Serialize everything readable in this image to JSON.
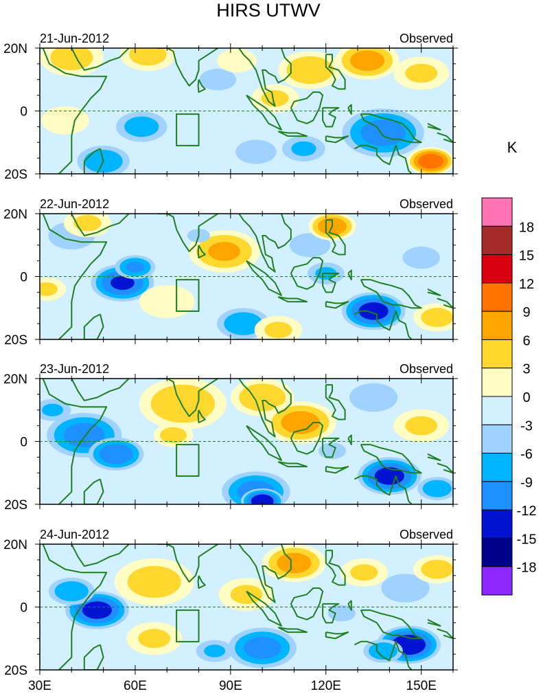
{
  "chart_data": {
    "type": "heatmap",
    "title": "HIRS UTWV",
    "units": "K",
    "run_label": "Observed",
    "x_ticks": [
      "30E",
      "60E",
      "90E",
      "120E",
      "150E"
    ],
    "x_tick_values": [
      30,
      60,
      90,
      120,
      150
    ],
    "y_ticks": [
      "20N",
      "0",
      "20S"
    ],
    "y_tick_values": [
      20,
      0,
      -20
    ],
    "xlim": [
      30,
      160
    ],
    "ylim": [
      -20,
      20
    ],
    "box_region": {
      "lon": [
        73,
        80
      ],
      "lat": [
        -11,
        -1
      ]
    },
    "colorbar": {
      "tick_labels": [
        "18",
        "15",
        "12",
        "9",
        "6",
        "3",
        "0",
        "-3",
        "-6",
        "-9",
        "-12",
        "-15",
        "-18"
      ],
      "colors": [
        "#ff73b4",
        "#a52a2a",
        "#d7000f",
        "#ff7300",
        "#ffa500",
        "#ffd82f",
        "#fffcc4",
        "#d2f0ff",
        "#a0d2ff",
        "#00b4ff",
        "#1e90ff",
        "#0014d2",
        "#00008b",
        "#8c28ff"
      ]
    },
    "panels": [
      {
        "date": "21-Jun-2012",
        "blobs": [
          {
            "lon": 40,
            "lat": 17,
            "r": 8,
            "v": 4
          },
          {
            "lon": 64,
            "lat": 18,
            "r": 7,
            "v": 4
          },
          {
            "lon": 38,
            "lat": -3,
            "r": 6,
            "v": 2
          },
          {
            "lon": 62,
            "lat": -5,
            "r": 8,
            "v": -7
          },
          {
            "lon": 50,
            "lat": -16,
            "r": 8,
            "v": -8
          },
          {
            "lon": 86,
            "lat": 10,
            "r": 8,
            "v": -3
          },
          {
            "lon": 92,
            "lat": 16,
            "r": 5,
            "v": 2
          },
          {
            "lon": 98,
            "lat": -13,
            "r": 7,
            "v": -5
          },
          {
            "lon": 115,
            "lat": 13,
            "r": 8,
            "v": 5
          },
          {
            "lon": 138,
            "lat": -7,
            "r": 12,
            "v": -10
          },
          {
            "lon": 133,
            "lat": 16,
            "r": 8,
            "v": 7
          },
          {
            "lon": 150,
            "lat": 12,
            "r": 7,
            "v": 3
          },
          {
            "lon": 153,
            "lat": -16,
            "r": 6,
            "v": 11
          },
          {
            "lon": 113,
            "lat": -12,
            "r": 7,
            "v": -6
          },
          {
            "lon": 104,
            "lat": 4,
            "r": 6,
            "v": 3
          }
        ]
      },
      {
        "date": "22-Jun-2012",
        "blobs": [
          {
            "lon": 40,
            "lat": 13,
            "r": 8,
            "v": -5
          },
          {
            "lon": 56,
            "lat": -2,
            "r": 9,
            "v": -12
          },
          {
            "lon": 60,
            "lat": 3,
            "r": 6,
            "v": -9
          },
          {
            "lon": 45,
            "lat": 17,
            "r": 6,
            "v": 3
          },
          {
            "lon": 88,
            "lat": 8,
            "r": 9,
            "v": 6
          },
          {
            "lon": 70,
            "lat": -8,
            "r": 7,
            "v": 2
          },
          {
            "lon": 80,
            "lat": 13,
            "r": 5,
            "v": -3
          },
          {
            "lon": 94,
            "lat": -15,
            "r": 8,
            "v": -8
          },
          {
            "lon": 115,
            "lat": 10,
            "r": 7,
            "v": -5
          },
          {
            "lon": 120,
            "lat": 1,
            "r": 6,
            "v": -6
          },
          {
            "lon": 122,
            "lat": 16,
            "r": 6,
            "v": 8
          },
          {
            "lon": 135,
            "lat": -11,
            "r": 9,
            "v": -13
          },
          {
            "lon": 150,
            "lat": 6,
            "r": 7,
            "v": -4
          },
          {
            "lon": 155,
            "lat": -13,
            "r": 6,
            "v": 4
          },
          {
            "lon": 105,
            "lat": -17,
            "r": 6,
            "v": 3
          },
          {
            "lon": 32,
            "lat": -4,
            "r": 5,
            "v": 3
          }
        ]
      },
      {
        "date": "23-Jun-2012",
        "blobs": [
          {
            "lon": 44,
            "lat": 2,
            "r": 11,
            "v": -10
          },
          {
            "lon": 54,
            "lat": -4,
            "r": 8,
            "v": -11
          },
          {
            "lon": 34,
            "lat": 10,
            "r": 6,
            "v": -6
          },
          {
            "lon": 75,
            "lat": 12,
            "r": 11,
            "v": 5
          },
          {
            "lon": 72,
            "lat": 2,
            "r": 5,
            "v": 4
          },
          {
            "lon": 100,
            "lat": 14,
            "r": 8,
            "v": 5
          },
          {
            "lon": 112,
            "lat": 6,
            "r": 9,
            "v": 7
          },
          {
            "lon": 98,
            "lat": -16,
            "r": 10,
            "v": -10
          },
          {
            "lon": 100,
            "lat": -19,
            "r": 6,
            "v": -14
          },
          {
            "lon": 140,
            "lat": -11,
            "r": 9,
            "v": -13
          },
          {
            "lon": 135,
            "lat": 14,
            "r": 9,
            "v": -4
          },
          {
            "lon": 150,
            "lat": 5,
            "r": 7,
            "v": 3
          },
          {
            "lon": 122,
            "lat": -3,
            "r": 6,
            "v": -3
          },
          {
            "lon": 155,
            "lat": -15,
            "r": 6,
            "v": -8
          }
        ]
      },
      {
        "date": "24-Jun-2012",
        "blobs": [
          {
            "lon": 48,
            "lat": -1,
            "r": 9,
            "v": -13
          },
          {
            "lon": 40,
            "lat": 5,
            "r": 7,
            "v": -8
          },
          {
            "lon": 66,
            "lat": 8,
            "r": 10,
            "v": 4
          },
          {
            "lon": 66,
            "lat": -10,
            "r": 7,
            "v": 3
          },
          {
            "lon": 110,
            "lat": 14,
            "r": 8,
            "v": 7
          },
          {
            "lon": 95,
            "lat": 4,
            "r": 7,
            "v": 3
          },
          {
            "lon": 100,
            "lat": -13,
            "r": 10,
            "v": -10
          },
          {
            "lon": 146,
            "lat": -12,
            "r": 9,
            "v": -14
          },
          {
            "lon": 138,
            "lat": -14,
            "r": 6,
            "v": -8
          },
          {
            "lon": 145,
            "lat": 6,
            "r": 9,
            "v": -4
          },
          {
            "lon": 132,
            "lat": 11,
            "r": 6,
            "v": 3
          },
          {
            "lon": 155,
            "lat": 12,
            "r": 6,
            "v": 4
          },
          {
            "lon": 85,
            "lat": -14,
            "r": 6,
            "v": -6
          },
          {
            "lon": 125,
            "lat": -2,
            "r": 6,
            "v": -3
          }
        ]
      }
    ]
  }
}
